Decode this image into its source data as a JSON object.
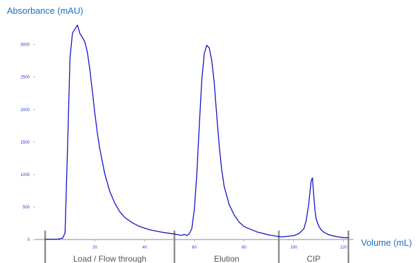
{
  "chart_data": {
    "type": "line",
    "title": "",
    "ylabel": "Absorbance (mAU)",
    "xlabel": "Volume (mL)",
    "xlim": [
      -4,
      124
    ],
    "ylim": [
      0,
      3400
    ],
    "x_ticks": [
      "20",
      "40",
      "60",
      "80",
      "100",
      "120"
    ],
    "y_ticks": [
      "0",
      "500",
      "1000",
      "1500",
      "2000",
      "2500",
      "3000"
    ],
    "grid": false,
    "series": [
      {
        "color": "#1010c8",
        "x": [
          0,
          5,
          7,
          8,
          9,
          10,
          11,
          12,
          13,
          14,
          15,
          16,
          17,
          18,
          19,
          20,
          21,
          22,
          24,
          26,
          28,
          30,
          32,
          35,
          38,
          42,
          46,
          50,
          52,
          54,
          55,
          56,
          57,
          58,
          59,
          60,
          61,
          62,
          63,
          64,
          65,
          66,
          67,
          68,
          69,
          70,
          71,
          72,
          74,
          76,
          78,
          80,
          85,
          90,
          95,
          100,
          102,
          104,
          105,
          106,
          107,
          107.5,
          108,
          108.5,
          109,
          110,
          111,
          112,
          114,
          116,
          118,
          120,
          122
        ],
        "y": [
          5,
          5,
          20,
          100,
          1400,
          2800,
          3180,
          3240,
          3300,
          3170,
          3110,
          3040,
          2880,
          2610,
          2280,
          1940,
          1640,
          1390,
          1010,
          740,
          560,
          430,
          340,
          260,
          200,
          150,
          120,
          95,
          85,
          70,
          65,
          80,
          60,
          90,
          170,
          460,
          1000,
          1750,
          2450,
          2860,
          2990,
          2950,
          2760,
          2420,
          1920,
          1450,
          1080,
          820,
          540,
          380,
          270,
          200,
          120,
          70,
          40,
          60,
          90,
          160,
          290,
          540,
          900,
          950,
          700,
          460,
          320,
          210,
          150,
          115,
          75,
          55,
          40,
          30,
          25
        ]
      }
    ],
    "phases": [
      {
        "label": "Load / Flow through",
        "start": 0,
        "end": 52
      },
      {
        "label": "Elution",
        "start": 52,
        "end": 94
      },
      {
        "label": "CIP",
        "start": 94,
        "end": 122
      }
    ],
    "phase_markers": [
      0,
      52,
      94,
      122
    ]
  }
}
